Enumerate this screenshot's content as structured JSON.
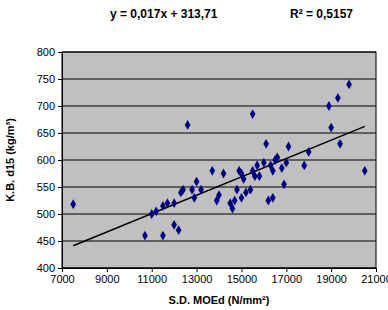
{
  "chart_data": {
    "type": "scatter",
    "title": "y = 0,017x + 313,71",
    "subtitle": "R² = 0,5157",
    "x_label": "S.D. MOEd (N/mm²)",
    "y_label": "K.B. d15 (kg/m³)",
    "trendline": {
      "slope": 0.017,
      "intercept": 313.71
    },
    "color": "#000080",
    "marker": "diamond",
    "grid": true,
    "x": [
      7500,
      10700,
      11000,
      11200,
      11500,
      11500,
      11700,
      12000,
      12000,
      12200,
      12300,
      12400,
      12600,
      12800,
      12900,
      13000,
      13200,
      13700,
      13900,
      14000,
      14200,
      14500,
      14600,
      14700,
      14800,
      14900,
      15000,
      15000,
      15100,
      15200,
      15400,
      15500,
      15500,
      15600,
      15700,
      15800,
      16000,
      16100,
      16200,
      16300,
      16400,
      16400,
      16500,
      16600,
      16800,
      16900,
      17000,
      17100,
      17800,
      18000,
      18900,
      19000,
      19300,
      19400,
      19800,
      20500
    ],
    "values": [
      518,
      460,
      500,
      505,
      460,
      515,
      520,
      520,
      480,
      470,
      540,
      545,
      665,
      545,
      530,
      560,
      545,
      580,
      525,
      535,
      575,
      520,
      510,
      525,
      545,
      580,
      530,
      575,
      565,
      540,
      545,
      580,
      685,
      570,
      590,
      570,
      595,
      630,
      525,
      590,
      580,
      530,
      600,
      605,
      585,
      555,
      595,
      625,
      590,
      615,
      700,
      660,
      715,
      630,
      740,
      580
    ],
    "xlim": [
      7000,
      21000
    ],
    "xticks": [
      7000,
      9000,
      11000,
      13000,
      15000,
      17000,
      19000,
      21000
    ],
    "ylim": [
      400,
      800
    ],
    "yticks": [
      400,
      450,
      500,
      550,
      600,
      650,
      700,
      750,
      800
    ]
  }
}
